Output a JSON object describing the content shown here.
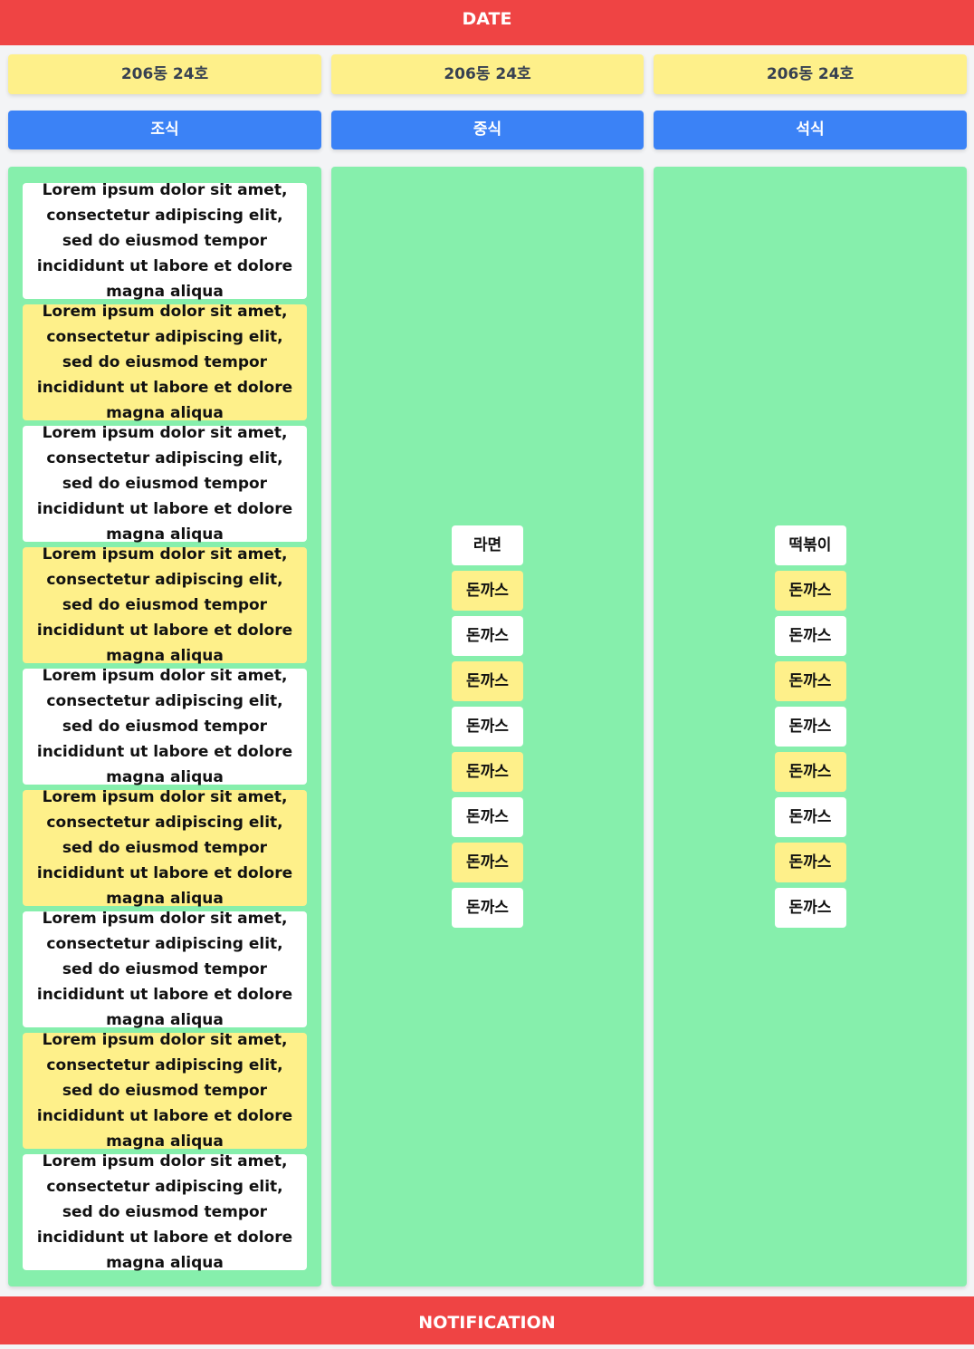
{
  "header": {
    "title": "DATE"
  },
  "footer": {
    "title": "NOTIFICATION"
  },
  "columns": [
    {
      "unit": "206동 24호",
      "meal": "조식",
      "items": [
        "Lorem ipsum dolor sit amet, consectetur adipiscing elit, sed do eiusmod tempor incididunt ut labore et dolore magna aliqua",
        "Lorem ipsum dolor sit amet, consectetur adipiscing elit, sed do eiusmod tempor incididunt ut labore et dolore magna aliqua",
        "Lorem ipsum dolor sit amet, consectetur adipiscing elit, sed do eiusmod tempor incididunt ut labore et dolore magna aliqua",
        "Lorem ipsum dolor sit amet, consectetur adipiscing elit, sed do eiusmod tempor incididunt ut labore et dolore magna aliqua",
        "Lorem ipsum dolor sit amet, consectetur adipiscing elit, sed do eiusmod tempor incididunt ut labore et dolore magna aliqua",
        "Lorem ipsum dolor sit amet, consectetur adipiscing elit, sed do eiusmod tempor incididunt ut labore et dolore magna aliqua",
        "Lorem ipsum dolor sit amet, consectetur adipiscing elit, sed do eiusmod tempor incididunt ut labore et dolore magna aliqua",
        "Lorem ipsum dolor sit amet, consectetur adipiscing elit, sed do eiusmod tempor incididunt ut labore et dolore magna aliqua",
        "Lorem ipsum dolor sit amet, consectetur adipiscing elit, sed do eiusmod tempor incididunt ut labore et dolore magna aliqua"
      ]
    },
    {
      "unit": "206동 24호",
      "meal": "중식",
      "items": [
        "라면",
        "돈까스",
        "돈까스",
        "돈까스",
        "돈까스",
        "돈까스",
        "돈까스",
        "돈까스",
        "돈까스"
      ]
    },
    {
      "unit": "206동 24호",
      "meal": "석식",
      "items": [
        "떡볶이",
        "돈까스",
        "돈까스",
        "돈까스",
        "돈까스",
        "돈까스",
        "돈까스",
        "돈까스",
        "돈까스"
      ]
    }
  ]
}
